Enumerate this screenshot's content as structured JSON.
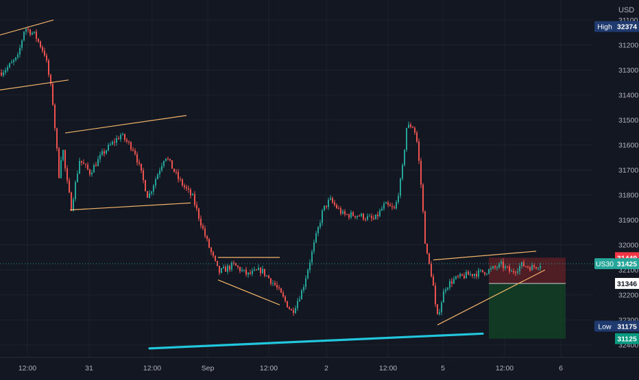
{
  "colors": {
    "background": "#131722",
    "grid": "#1e222d",
    "axis_text": "#b2b5be",
    "up": "#26a69a",
    "down": "#ef5350",
    "trendline": "#f5b66a",
    "support_line": "#22c7dd",
    "stop_zone": "#5b1f25",
    "target_zone": "#123d23",
    "last_price_badge": "#26a69a",
    "high_low_badge": "#1e3a6e",
    "stop_badge": "#f23645",
    "target_badge": "#089981",
    "entry_badge": "#ffffff"
  },
  "axis": {
    "currency": "USD",
    "price_ticks": [
      "32400",
      "32300",
      "32200",
      "32100",
      "32000",
      "31900",
      "31800",
      "31700",
      "31600",
      "31500",
      "31400",
      "31300",
      "31200",
      "31100"
    ],
    "time_ticks": [
      "12:00",
      "31",
      "12:00",
      "Sep",
      "12:00",
      "2",
      "12:00",
      "5",
      "12:00",
      "6"
    ]
  },
  "badges": {
    "high": {
      "label": "High",
      "value": "32374"
    },
    "symbol": {
      "label": "US30",
      "value": "31425"
    },
    "stop": {
      "value": "31449"
    },
    "entry": {
      "value": "31346"
    },
    "low": {
      "label": "Low",
      "value": "31175"
    },
    "target": {
      "value": "31125"
    }
  },
  "chart_data": {
    "type": "candlestick",
    "symbol": "US30",
    "currency": "USD",
    "ylim": [
      31050,
      32480
    ],
    "y_ticks": [
      31100,
      31200,
      31300,
      31400,
      31500,
      31600,
      31700,
      31800,
      31900,
      32000,
      32100,
      32200,
      32300,
      32400
    ],
    "x_ticks": [
      "12:00",
      "31",
      "12:00",
      "Sep",
      "12:00",
      "2",
      "12:00",
      "5",
      "12:00",
      "6"
    ],
    "grid": true,
    "high": 32374,
    "low": 31175,
    "last_price": 31425,
    "price_path": [
      [
        0,
        32190
      ],
      [
        10,
        32210
      ],
      [
        25,
        32250
      ],
      [
        35,
        32370
      ],
      [
        50,
        32340
      ],
      [
        65,
        32260
      ],
      [
        75,
        32100
      ],
      [
        85,
        31780
      ],
      [
        90,
        31900
      ],
      [
        95,
        31780
      ],
      [
        103,
        31650
      ],
      [
        115,
        31840
      ],
      [
        130,
        31790
      ],
      [
        150,
        31870
      ],
      [
        175,
        31940
      ],
      [
        195,
        31880
      ],
      [
        215,
        31690
      ],
      [
        240,
        31860
      ],
      [
        260,
        31760
      ],
      [
        280,
        31690
      ],
      [
        300,
        31520
      ],
      [
        318,
        31390
      ],
      [
        340,
        31420
      ],
      [
        360,
        31380
      ],
      [
        380,
        31400
      ],
      [
        400,
        31340
      ],
      [
        425,
        31230
      ],
      [
        440,
        31320
      ],
      [
        455,
        31480
      ],
      [
        470,
        31640
      ],
      [
        480,
        31680
      ],
      [
        500,
        31620
      ],
      [
        520,
        31620
      ],
      [
        545,
        31600
      ],
      [
        560,
        31660
      ],
      [
        575,
        31640
      ],
      [
        585,
        31780
      ],
      [
        592,
        31970
      ],
      [
        600,
        31980
      ],
      [
        606,
        31940
      ],
      [
        612,
        31780
      ],
      [
        620,
        31480
      ],
      [
        630,
        31360
      ],
      [
        636,
        31200
      ],
      [
        648,
        31330
      ],
      [
        660,
        31360
      ],
      [
        680,
        31380
      ],
      [
        700,
        31390
      ],
      [
        715,
        31400
      ],
      [
        730,
        31420
      ],
      [
        745,
        31390
      ],
      [
        760,
        31420
      ],
      [
        775,
        31410
      ],
      [
        788,
        31425
      ]
    ],
    "trendlines": [
      {
        "p1": [
          0,
          32340
        ],
        "p2": [
          78,
          32400
        ]
      },
      {
        "p1": [
          0,
          32120
        ],
        "p2": [
          100,
          32160
        ]
      },
      {
        "p1": [
          95,
          31948
        ],
        "p2": [
          272,
          32018
        ]
      },
      {
        "p1": [
          102,
          31640
        ],
        "p2": [
          278,
          31668
        ]
      },
      {
        "p1": [
          318,
          31450
        ],
        "p2": [
          408,
          31450
        ]
      },
      {
        "p1": [
          318,
          31360
        ],
        "p2": [
          408,
          31260
        ]
      },
      {
        "p1": [
          632,
          31440
        ],
        "p2": [
          782,
          31475
        ]
      },
      {
        "p1": [
          638,
          31180
        ],
        "p2": [
          795,
          31400
        ]
      }
    ],
    "support_line": {
      "p1": [
        218,
        31086
      ],
      "p2": [
        704,
        31145
      ]
    },
    "position": {
      "entry": 31346,
      "stop": 31449,
      "target": 31125,
      "x_start": 713,
      "x_end": 825
    }
  }
}
